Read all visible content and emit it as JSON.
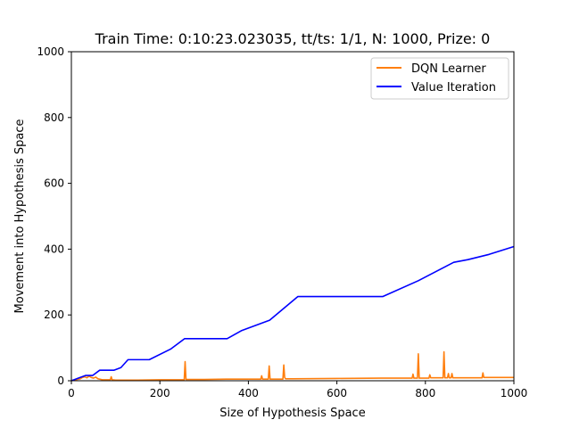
{
  "chart_data": {
    "type": "line",
    "title": "Train Time: 0:10:23.023035, tt/ts: 1/1, N: 1000, Prize: 0",
    "xlabel": "Size of Hypothesis Space",
    "ylabel": "Movement into Hypothesis Space",
    "xlim": [
      0,
      1000
    ],
    "ylim": [
      0,
      1000
    ],
    "xticks": [
      0,
      200,
      400,
      600,
      800,
      1000
    ],
    "yticks": [
      0,
      200,
      400,
      600,
      800,
      1000
    ],
    "grid": false,
    "legend_position": "top-right",
    "series": [
      {
        "name": "DQN Learner",
        "color": "#ff7f0e",
        "x": [
          0,
          10,
          20,
          25,
          30,
          35,
          40,
          45,
          50,
          55,
          60,
          70,
          88,
          90,
          92,
          100,
          150,
          200,
          255,
          257,
          259,
          262,
          300,
          350,
          400,
          428,
          430,
          432,
          445,
          447,
          449,
          451,
          478,
          480,
          482,
          484,
          500,
          600,
          700,
          770,
          772,
          774,
          782,
          784,
          786,
          788,
          800,
          808,
          810,
          812,
          840,
          842,
          844,
          846,
          850,
          852,
          854,
          858,
          860,
          862,
          880,
          928,
          930,
          932,
          950,
          1000
        ],
        "y": [
          0,
          3,
          6,
          10,
          12,
          9,
          14,
          10,
          8,
          11,
          6,
          3,
          3,
          12,
          3,
          2,
          2,
          3,
          3,
          58,
          4,
          4,
          4,
          5,
          5,
          5,
          15,
          5,
          5,
          45,
          5,
          5,
          5,
          48,
          10,
          6,
          6,
          7,
          8,
          8,
          20,
          8,
          8,
          82,
          8,
          8,
          8,
          8,
          18,
          9,
          9,
          88,
          9,
          9,
          9,
          22,
          9,
          9,
          22,
          9,
          9,
          9,
          24,
          10,
          10,
          10
        ]
      },
      {
        "name": "Value Iteration",
        "color": "#0000ff",
        "x": [
          0,
          16,
          32,
          48,
          64,
          96,
          112,
          128,
          176,
          224,
          256,
          352,
          384,
          448,
          512,
          704,
          784,
          864,
          896,
          944,
          1000
        ],
        "y": [
          0,
          8,
          16,
          16,
          32,
          32,
          40,
          64,
          64,
          96,
          128,
          128,
          152,
          184,
          256,
          256,
          304,
          360,
          368,
          384,
          408
        ]
      }
    ]
  }
}
